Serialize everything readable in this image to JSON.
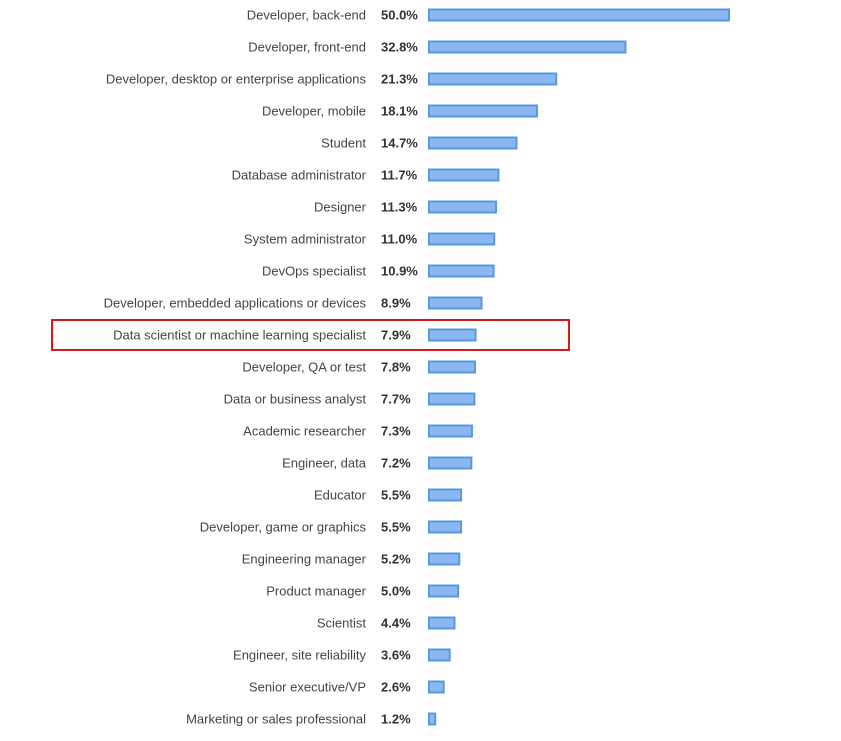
{
  "chart_data": {
    "type": "bar",
    "orientation": "horizontal",
    "categories": [
      "Developer, back-end",
      "Developer, front-end",
      "Developer, desktop or enterprise applications",
      "Developer, mobile",
      "Student",
      "Database administrator",
      "Designer",
      "System administrator",
      "DevOps specialist",
      "Developer, embedded applications or devices",
      "Data scientist or machine learning specialist",
      "Developer, QA or test",
      "Data or business analyst",
      "Academic researcher",
      "Engineer, data",
      "Educator",
      "Developer, game or graphics",
      "Engineering manager",
      "Product manager",
      "Scientist",
      "Engineer, site reliability",
      "Senior executive/VP",
      "Marketing or sales professional"
    ],
    "values": [
      50.0,
      32.8,
      21.3,
      18.1,
      14.7,
      11.7,
      11.3,
      11.0,
      10.9,
      8.9,
      7.9,
      7.8,
      7.7,
      7.3,
      7.2,
      5.5,
      5.5,
      5.2,
      5.0,
      4.4,
      3.6,
      2.6,
      1.2
    ],
    "value_labels": [
      "50.0%",
      "32.8%",
      "21.3%",
      "18.1%",
      "14.7%",
      "11.7%",
      "11.3%",
      "11.0%",
      "10.9%",
      "8.9%",
      "7.9%",
      "7.8%",
      "7.7%",
      "7.3%",
      "7.2%",
      "5.5%",
      "5.5%",
      "5.2%",
      "5.0%",
      "4.4%",
      "3.6%",
      "2.6%",
      "1.2%"
    ],
    "highlighted_category": "Data scientist or machine learning specialist",
    "xlim": [
      0,
      50
    ],
    "title": "",
    "xlabel": "",
    "ylabel": "",
    "grid": false,
    "colors": {
      "bar_fill": "#8ab9f1",
      "bar_stroke": "#5a97e0",
      "highlight": "#d41a1a",
      "label_text": "#444444",
      "value_text": "#333333"
    }
  }
}
